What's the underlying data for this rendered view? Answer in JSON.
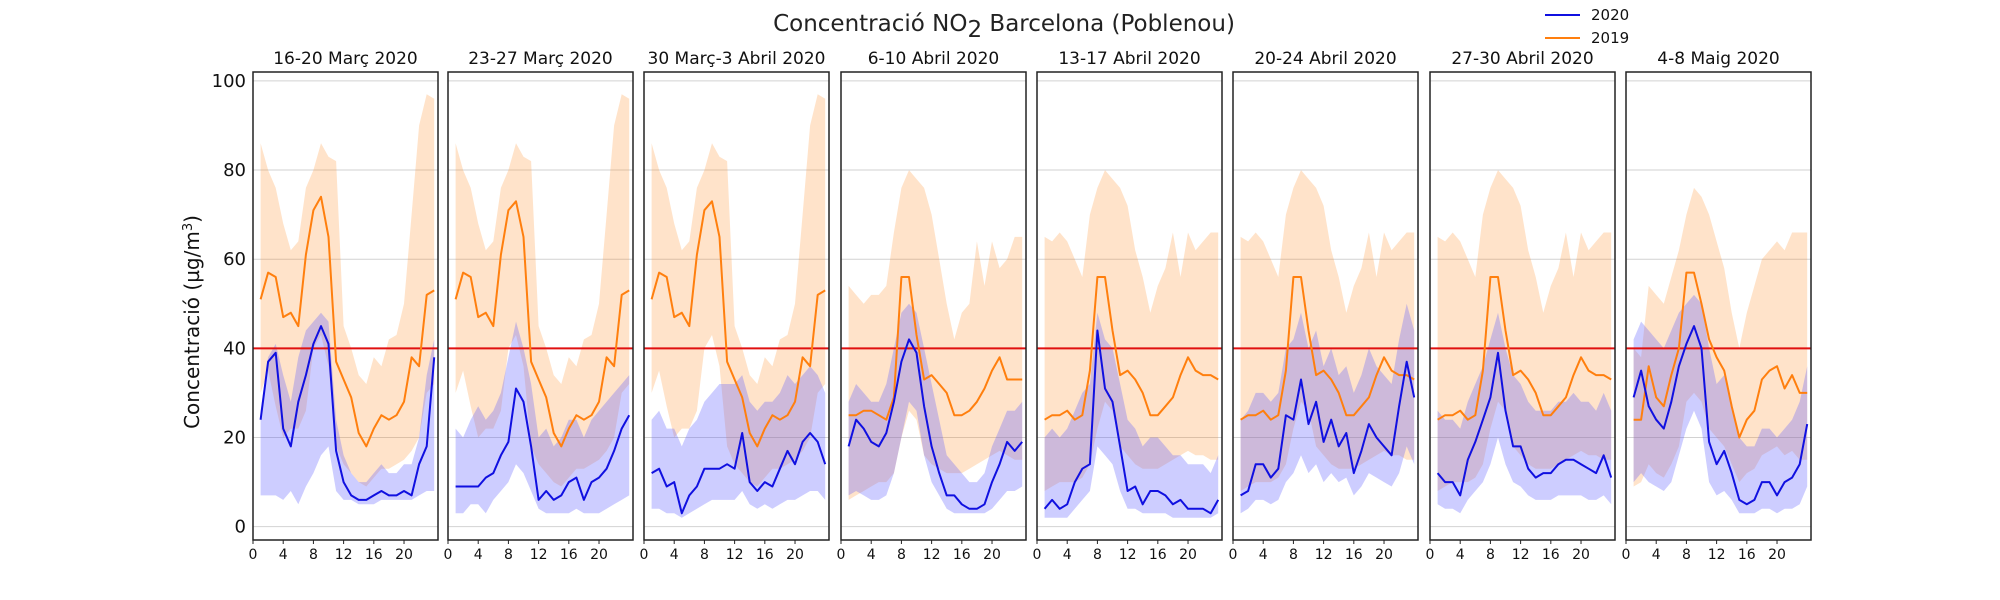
{
  "chart_data": {
    "type": "line",
    "title": "Concentració NO",
    "title_sub": "2",
    "title_suffix": " Barcelona (Poblenou)",
    "ylabel_prefix": "Concentració (µg/m",
    "ylabel_sup": "3",
    "ylabel_suffix": ")",
    "ylim": [
      -3,
      102
    ],
    "xlim": [
      0,
      24.5
    ],
    "yticks": [
      0,
      20,
      40,
      60,
      80,
      100
    ],
    "xticks": [
      0,
      4,
      8,
      12,
      16,
      20
    ],
    "grid": true,
    "legend_position": "top-right",
    "legend": [
      {
        "label": "2020",
        "color": "#1010e0"
      },
      {
        "label": "2019",
        "color": "#ff7f0e"
      }
    ],
    "threshold": {
      "value": 40,
      "color": "#e01010"
    },
    "panels": [
      {
        "title": "16-20 Març 2020",
        "s2020": [
          24,
          37,
          39,
          22,
          18,
          28,
          34,
          41,
          45,
          41,
          17,
          10,
          7,
          6,
          6,
          7,
          8,
          7,
          7,
          8,
          7,
          14,
          18,
          38
        ],
        "b2020_lo": [
          7,
          7,
          7,
          6,
          8,
          5,
          9,
          12,
          16,
          18,
          8,
          6,
          6,
          5,
          5,
          5,
          6,
          6,
          6,
          6,
          6,
          7,
          8,
          8
        ],
        "b2020_hi": [
          26,
          38,
          41,
          34,
          28,
          38,
          44,
          46,
          48,
          46,
          24,
          16,
          12,
          10,
          10,
          12,
          14,
          12,
          12,
          14,
          14,
          20,
          34,
          42
        ],
        "s2019": [
          51,
          57,
          56,
          47,
          48,
          45,
          61,
          71,
          74,
          65,
          37,
          33,
          29,
          21,
          18,
          22,
          25,
          24,
          25,
          28,
          38,
          36,
          52,
          53
        ],
        "b2019_lo": [
          30,
          35,
          27,
          20,
          22,
          22,
          26,
          40,
          43,
          36,
          18,
          14,
          12,
          10,
          9,
          11,
          13,
          13,
          14,
          15,
          17,
          20,
          30,
          32
        ],
        "b2019_hi": [
          86,
          80,
          76,
          68,
          62,
          64,
          76,
          80,
          86,
          83,
          82,
          45,
          40,
          34,
          32,
          38,
          36,
          42,
          43,
          50,
          70,
          90,
          97,
          96
        ]
      },
      {
        "title": "23-27 Març 2020",
        "s2020": [
          9,
          9,
          9,
          9,
          11,
          12,
          16,
          19,
          31,
          28,
          18,
          6,
          8,
          6,
          7,
          10,
          11,
          6,
          10,
          11,
          13,
          17,
          22,
          25
        ],
        "b2020_lo": [
          3,
          3,
          5,
          5,
          3,
          6,
          8,
          10,
          14,
          12,
          8,
          4,
          3,
          3,
          3,
          3,
          4,
          3,
          3,
          3,
          4,
          5,
          6,
          7
        ],
        "b2020_hi": [
          22,
          20,
          24,
          27,
          24,
          26,
          30,
          38,
          46,
          40,
          32,
          20,
          22,
          18,
          20,
          24,
          24,
          20,
          24,
          26,
          28,
          30,
          32,
          34
        ],
        "s2019": [
          51,
          57,
          56,
          47,
          48,
          45,
          61,
          71,
          73,
          65,
          37,
          33,
          29,
          21,
          18,
          22,
          25,
          24,
          25,
          28,
          38,
          36,
          52,
          53
        ],
        "b2019_lo": [
          30,
          35,
          27,
          20,
          22,
          22,
          26,
          40,
          43,
          36,
          18,
          14,
          12,
          10,
          9,
          11,
          13,
          13,
          14,
          15,
          17,
          20,
          30,
          32
        ],
        "b2019_hi": [
          86,
          80,
          76,
          68,
          62,
          64,
          76,
          80,
          86,
          83,
          82,
          45,
          40,
          34,
          32,
          38,
          36,
          42,
          43,
          50,
          70,
          90,
          97,
          96
        ]
      },
      {
        "title": "30 Març-3 Abril 2020",
        "s2020": [
          12,
          13,
          9,
          10,
          3,
          7,
          9,
          13,
          13,
          13,
          14,
          13,
          21,
          10,
          8,
          10,
          9,
          13,
          17,
          14,
          19,
          21,
          19,
          14
        ],
        "b2020_lo": [
          4,
          4,
          3,
          3,
          2,
          3,
          4,
          5,
          6,
          6,
          6,
          6,
          8,
          5,
          4,
          5,
          4,
          5,
          6,
          6,
          7,
          8,
          8,
          6
        ],
        "b2020_hi": [
          24,
          26,
          22,
          22,
          18,
          22,
          24,
          28,
          30,
          32,
          32,
          32,
          34,
          28,
          26,
          28,
          28,
          30,
          34,
          32,
          34,
          36,
          34,
          30
        ],
        "s2019": [
          51,
          57,
          56,
          47,
          48,
          45,
          61,
          71,
          73,
          65,
          37,
          33,
          29,
          21,
          18,
          22,
          25,
          24,
          25,
          28,
          38,
          36,
          52,
          53
        ],
        "b2019_lo": [
          30,
          35,
          27,
          20,
          22,
          22,
          26,
          40,
          43,
          36,
          18,
          14,
          12,
          10,
          9,
          11,
          13,
          13,
          14,
          15,
          17,
          20,
          30,
          32
        ],
        "b2019_hi": [
          86,
          80,
          76,
          68,
          62,
          64,
          76,
          80,
          86,
          83,
          82,
          45,
          40,
          34,
          32,
          38,
          36,
          42,
          43,
          50,
          70,
          90,
          97,
          96
        ]
      },
      {
        "title": "6-10 Abril 2020",
        "s2020": [
          18,
          24,
          22,
          19,
          18,
          21,
          28,
          37,
          42,
          39,
          27,
          18,
          12,
          7,
          7,
          5,
          4,
          4,
          5,
          10,
          14,
          19,
          17,
          19
        ],
        "b2020_lo": [
          7,
          8,
          7,
          6,
          6,
          7,
          12,
          20,
          28,
          26,
          16,
          10,
          7,
          4,
          3,
          3,
          3,
          3,
          3,
          4,
          6,
          8,
          8,
          9
        ],
        "b2020_hi": [
          28,
          32,
          30,
          28,
          28,
          32,
          40,
          48,
          50,
          48,
          40,
          32,
          24,
          16,
          14,
          12,
          10,
          10,
          12,
          18,
          22,
          26,
          26,
          28
        ],
        "s2019": [
          25,
          25,
          26,
          26,
          25,
          24,
          29,
          56,
          56,
          43,
          33,
          34,
          32,
          30,
          25,
          25,
          26,
          28,
          31,
          35,
          38,
          33,
          33,
          33
        ],
        "b2019_lo": [
          6,
          7,
          8,
          9,
          10,
          10,
          12,
          20,
          26,
          24,
          16,
          14,
          13,
          12,
          12,
          12,
          13,
          14,
          15,
          16,
          17,
          16,
          15,
          15
        ],
        "b2019_hi": [
          54,
          52,
          50,
          52,
          52,
          54,
          66,
          76,
          80,
          78,
          76,
          70,
          60,
          50,
          42,
          48,
          50,
          64,
          54,
          64,
          58,
          60,
          65,
          65
        ]
      },
      {
        "title": "13-17 Abril 2020",
        "s2020": [
          4,
          6,
          4,
          5,
          10,
          13,
          14,
          44,
          31,
          28,
          18,
          8,
          9,
          5,
          8,
          8,
          7,
          5,
          6,
          4,
          4,
          4,
          3,
          6
        ],
        "b2020_lo": [
          2,
          2,
          2,
          2,
          4,
          6,
          8,
          18,
          16,
          14,
          8,
          4,
          4,
          3,
          3,
          3,
          3,
          2,
          2,
          2,
          2,
          2,
          2,
          3
        ],
        "b2020_hi": [
          20,
          22,
          20,
          22,
          26,
          30,
          32,
          48,
          42,
          40,
          32,
          24,
          22,
          18,
          20,
          20,
          18,
          16,
          16,
          14,
          14,
          14,
          12,
          16
        ],
        "s2019": [
          24,
          25,
          25,
          26,
          24,
          25,
          35,
          56,
          56,
          44,
          34,
          35,
          33,
          30,
          25,
          25,
          27,
          29,
          34,
          38,
          35,
          34,
          34,
          33
        ],
        "b2019_lo": [
          8,
          9,
          10,
          10,
          10,
          11,
          14,
          22,
          28,
          26,
          18,
          16,
          14,
          13,
          13,
          13,
          14,
          15,
          16,
          17,
          16,
          16,
          15,
          15
        ],
        "b2019_hi": [
          65,
          64,
          66,
          64,
          60,
          56,
          70,
          76,
          80,
          78,
          76,
          72,
          62,
          56,
          48,
          54,
          58,
          66,
          56,
          66,
          62,
          64,
          66,
          66
        ]
      },
      {
        "title": "20-24 Abril 2020",
        "s2020": [
          7,
          8,
          14,
          14,
          11,
          13,
          25,
          24,
          33,
          23,
          28,
          19,
          24,
          18,
          21,
          12,
          17,
          23,
          20,
          18,
          16,
          27,
          37,
          29
        ],
        "b2020_lo": [
          3,
          4,
          6,
          6,
          5,
          6,
          10,
          12,
          16,
          12,
          14,
          10,
          12,
          10,
          11,
          7,
          9,
          12,
          11,
          10,
          9,
          12,
          18,
          14
        ],
        "b2020_hi": [
          24,
          26,
          30,
          30,
          28,
          30,
          40,
          42,
          48,
          40,
          44,
          36,
          40,
          34,
          36,
          30,
          34,
          40,
          36,
          34,
          32,
          42,
          50,
          44
        ],
        "s2019": [
          24,
          25,
          25,
          26,
          24,
          25,
          35,
          56,
          56,
          44,
          34,
          35,
          33,
          30,
          25,
          25,
          27,
          29,
          34,
          38,
          35,
          34,
          34,
          33
        ],
        "b2019_lo": [
          8,
          9,
          10,
          10,
          10,
          11,
          14,
          22,
          28,
          26,
          18,
          16,
          14,
          13,
          13,
          13,
          14,
          15,
          16,
          17,
          16,
          16,
          15,
          15
        ],
        "b2019_hi": [
          65,
          64,
          66,
          64,
          60,
          56,
          70,
          76,
          80,
          78,
          76,
          72,
          62,
          56,
          48,
          54,
          58,
          66,
          56,
          66,
          62,
          64,
          66,
          66
        ]
      },
      {
        "title": "27-30 Abril 2020",
        "s2020": [
          12,
          10,
          10,
          7,
          15,
          19,
          24,
          29,
          39,
          26,
          18,
          18,
          13,
          11,
          12,
          12,
          14,
          15,
          15,
          14,
          13,
          12,
          16,
          11
        ],
        "b2020_lo": [
          5,
          4,
          4,
          3,
          6,
          8,
          10,
          14,
          20,
          14,
          10,
          9,
          7,
          6,
          6,
          6,
          7,
          7,
          7,
          7,
          6,
          6,
          7,
          5
        ],
        "b2020_hi": [
          26,
          24,
          24,
          22,
          28,
          32,
          36,
          42,
          48,
          40,
          34,
          32,
          28,
          26,
          26,
          26,
          28,
          28,
          30,
          28,
          28,
          26,
          30,
          26
        ],
        "s2019": [
          24,
          25,
          25,
          26,
          24,
          25,
          35,
          56,
          56,
          44,
          34,
          35,
          33,
          30,
          25,
          25,
          27,
          29,
          34,
          38,
          35,
          34,
          34,
          33
        ],
        "b2019_lo": [
          8,
          9,
          10,
          10,
          10,
          11,
          14,
          22,
          28,
          26,
          18,
          16,
          14,
          13,
          13,
          13,
          14,
          15,
          16,
          17,
          16,
          16,
          15,
          15
        ],
        "b2019_hi": [
          65,
          64,
          66,
          64,
          60,
          56,
          70,
          76,
          80,
          78,
          76,
          72,
          62,
          56,
          48,
          54,
          58,
          66,
          56,
          66,
          62,
          64,
          66,
          66
        ]
      },
      {
        "title": "4-8 Maig 2020",
        "s2020": [
          29,
          35,
          27,
          24,
          22,
          28,
          36,
          41,
          45,
          40,
          19,
          14,
          17,
          12,
          6,
          5,
          6,
          10,
          10,
          7,
          10,
          11,
          14,
          23
        ],
        "b2020_lo": [
          10,
          12,
          10,
          9,
          8,
          10,
          16,
          22,
          26,
          22,
          10,
          7,
          8,
          6,
          3,
          3,
          3,
          4,
          4,
          3,
          4,
          4,
          5,
          9
        ],
        "b2020_hi": [
          42,
          46,
          44,
          42,
          40,
          44,
          48,
          50,
          52,
          50,
          40,
          32,
          34,
          28,
          20,
          18,
          18,
          22,
          22,
          20,
          22,
          24,
          28,
          36
        ],
        "s2019": [
          24,
          24,
          36,
          29,
          27,
          34,
          40,
          57,
          57,
          50,
          42,
          38,
          35,
          27,
          20,
          24,
          26,
          33,
          35,
          36,
          31,
          34,
          30,
          30
        ],
        "b2019_lo": [
          9,
          10,
          14,
          12,
          11,
          14,
          18,
          28,
          30,
          28,
          22,
          20,
          18,
          14,
          10,
          12,
          13,
          16,
          17,
          18,
          16,
          17,
          15,
          15
        ],
        "b2019_hi": [
          40,
          38,
          54,
          52,
          50,
          56,
          62,
          70,
          76,
          74,
          70,
          64,
          58,
          48,
          40,
          48,
          54,
          60,
          62,
          64,
          62,
          66,
          66,
          66
        ]
      }
    ]
  }
}
